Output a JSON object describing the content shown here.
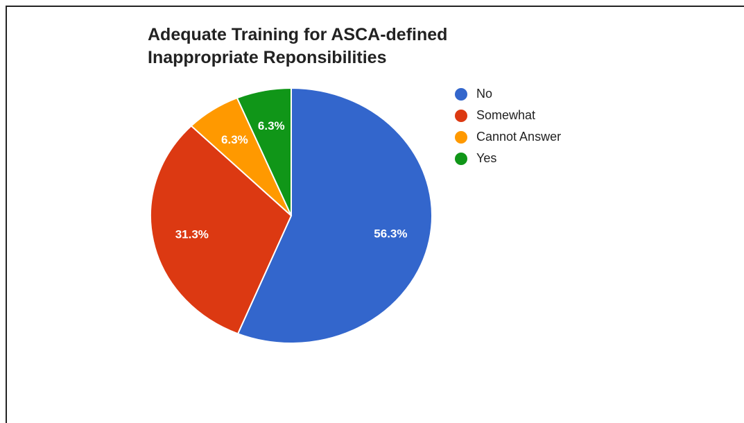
{
  "chart_data": {
    "type": "pie",
    "title": "Adequate Training for ASCA-defined Inappropriate Reponsibilities",
    "legend_position": "right",
    "slices": [
      {
        "label": "No",
        "value": 56.3,
        "value_label": "56.3%",
        "color": "#3366cc"
      },
      {
        "label": "Somewhat",
        "value": 31.3,
        "value_label": "31.3%",
        "color": "#dc3912"
      },
      {
        "label": "Cannot Answer",
        "value": 6.3,
        "value_label": "6.3%",
        "color": "#ff9900"
      },
      {
        "label": "Yes",
        "value": 6.3,
        "value_label": "6.3%",
        "color": "#109618"
      }
    ]
  }
}
